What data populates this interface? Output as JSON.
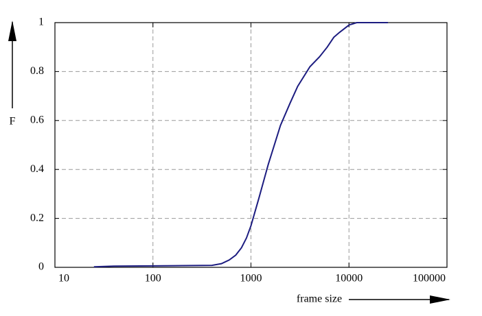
{
  "chart_data": {
    "type": "line",
    "x_label": "frame size",
    "y_label": "F",
    "x": [
      25,
      40,
      100,
      200,
      400,
      500,
      600,
      700,
      800,
      900,
      1000,
      1200,
      1500,
      2000,
      2500,
      3000,
      4000,
      5000,
      6000,
      7000,
      8000,
      10000,
      12000,
      20000,
      25000
    ],
    "values": [
      0.002,
      0.005,
      0.006,
      0.007,
      0.008,
      0.015,
      0.03,
      0.05,
      0.08,
      0.12,
      0.17,
      0.28,
      0.42,
      0.58,
      0.67,
      0.74,
      0.82,
      0.86,
      0.9,
      0.94,
      0.96,
      0.99,
      1.0,
      1.0,
      1.0
    ],
    "color": "#1c1c80",
    "xlim": [
      10,
      100000
    ],
    "xticks": [
      10,
      100,
      1000,
      10000,
      100000
    ],
    "xscale": "log",
    "ylim": [
      0,
      1
    ],
    "yticks": [
      0,
      0.2,
      0.4,
      0.6,
      0.8,
      1
    ],
    "grid": true
  }
}
